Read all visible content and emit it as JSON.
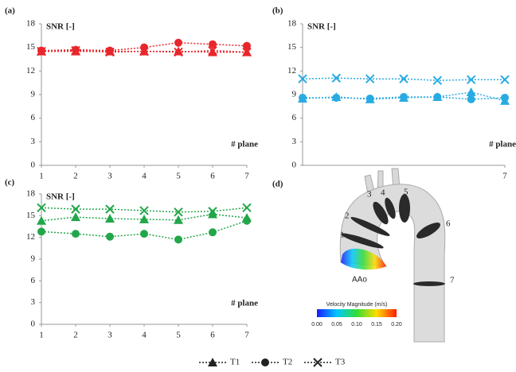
{
  "chart_data": [
    {
      "type": "line",
      "label": "(a)",
      "ylabel": "SNR [-]",
      "xlabel": "# plane",
      "x": [
        1,
        2,
        3,
        4,
        5,
        6,
        7
      ],
      "xlim": [
        1,
        7
      ],
      "xticks": [
        1,
        2,
        3,
        4,
        5,
        6,
        7
      ],
      "ylim": [
        0,
        18
      ],
      "yticks": [
        0,
        3,
        6,
        9,
        12,
        15,
        18
      ],
      "series": [
        {
          "name": "T1",
          "marker": "triangle",
          "color": "#e8262b",
          "values": [
            14.5,
            14.5,
            14.5,
            14.5,
            14.5,
            14.4,
            14.4
          ]
        },
        {
          "name": "T2",
          "marker": "circle",
          "color": "#e8262b",
          "values": [
            14.6,
            14.7,
            14.6,
            15.0,
            15.6,
            15.4,
            15.2
          ]
        },
        {
          "name": "T3",
          "marker": "x",
          "color": "#e8262b",
          "values": [
            14.5,
            14.6,
            14.4,
            14.5,
            14.4,
            14.6,
            14.4
          ]
        }
      ]
    },
    {
      "type": "line",
      "label": "(b)",
      "ylabel": "SNR [-]",
      "xlabel": "# plane",
      "x": [
        1,
        2,
        3,
        4,
        5,
        6,
        7
      ],
      "xlim": [
        1,
        7
      ],
      "xticks": [
        7
      ],
      "ylim": [
        0,
        18
      ],
      "yticks": [
        0,
        3,
        6,
        9,
        12,
        15,
        18
      ],
      "series": [
        {
          "name": "T1",
          "marker": "triangle",
          "color": "#29abe2",
          "values": [
            8.5,
            8.7,
            8.4,
            8.6,
            8.7,
            9.3,
            8.2
          ]
        },
        {
          "name": "T2",
          "marker": "circle",
          "color": "#29abe2",
          "values": [
            8.6,
            8.6,
            8.5,
            8.7,
            8.7,
            8.4,
            8.6
          ]
        },
        {
          "name": "T3",
          "marker": "x",
          "color": "#29abe2",
          "values": [
            11.0,
            11.1,
            11.0,
            11.0,
            10.8,
            10.9,
            10.9
          ]
        }
      ]
    },
    {
      "type": "line",
      "label": "(c)",
      "ylabel": "SNR [-]",
      "xlabel": "# plane",
      "x": [
        1,
        2,
        3,
        4,
        5,
        6,
        7
      ],
      "xlim": [
        1,
        7
      ],
      "xticks": [
        1,
        2,
        3,
        4,
        5,
        6,
        7
      ],
      "ylim": [
        0,
        18
      ],
      "yticks": [
        0,
        3,
        6,
        9,
        12,
        15,
        18
      ],
      "series": [
        {
          "name": "T1",
          "marker": "triangle",
          "color": "#22a64a",
          "values": [
            14.3,
            14.8,
            14.6,
            14.5,
            14.4,
            15.2,
            14.7
          ]
        },
        {
          "name": "T2",
          "marker": "circle",
          "color": "#22a64a",
          "values": [
            12.8,
            12.5,
            12.1,
            12.5,
            11.7,
            12.7,
            14.3
          ]
        },
        {
          "name": "T3",
          "marker": "x",
          "color": "#22a64a",
          "values": [
            16.1,
            15.9,
            15.9,
            15.7,
            15.5,
            15.6,
            16.1
          ]
        }
      ]
    }
  ],
  "panel_d": {
    "label": "(d)",
    "plane_labels": [
      "1",
      "2",
      "3",
      "4",
      "5",
      "6",
      "7"
    ],
    "vessel_label": "AAo",
    "colorbar_title": "Velocity Magnitude (m/s)",
    "colorbar_ticks": [
      "0.00",
      "0.05",
      "0.10",
      "0.15",
      "0.20"
    ]
  }
}
